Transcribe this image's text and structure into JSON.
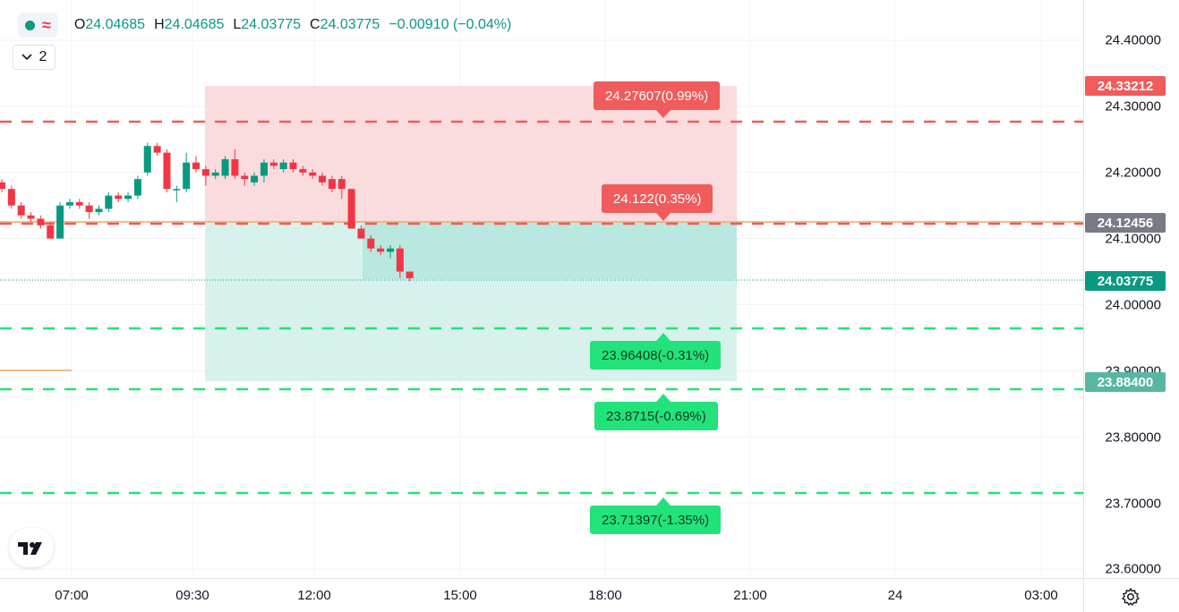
{
  "legend": {
    "o_key": "O",
    "o_val": "24.04685",
    "h_key": "H",
    "h_val": "24.04685",
    "l_key": "L",
    "l_val": "24.03775",
    "c_key": "C",
    "c_val": "24.03775",
    "change": "−0.00910 (−0.04%)",
    "indicator_count": "2"
  },
  "price_axis": {
    "ticks": [
      "24.40000",
      "24.30000",
      "24.20000",
      "24.10000",
      "24.00000",
      "23.90000",
      "23.80000",
      "23.70000",
      "23.60000"
    ],
    "badges": {
      "stop": "24.33212",
      "entry": "24.12456",
      "last": "24.03775",
      "target": "23.88400"
    }
  },
  "time_axis": {
    "ticks": [
      "07:00",
      "09:30",
      "12:00",
      "15:00",
      "18:00",
      "21:00",
      "24",
      "03:00"
    ]
  },
  "targets": {
    "red_top": "24.27607(0.99%)",
    "red_mid": "24.122(0.35%)",
    "green_1": "23.96408(-0.31%)",
    "green_2": "23.8715(-0.69%)",
    "green_3": "23.71397(-1.35%)"
  },
  "colors": {
    "up": "#089981",
    "down": "#f23645",
    "red_line": "#f05b5b",
    "green_line": "#22e37a",
    "entry_line": "#f7a35c",
    "stop_zone": "#fbdadc",
    "profit_zone": "#d5f1ec"
  },
  "chart_data": {
    "type": "candlestick",
    "ylim": [
      23.57,
      24.46
    ],
    "candles": [
      {
        "o": 24.185,
        "h": 24.19,
        "l": 24.17,
        "c": 24.175
      },
      {
        "o": 24.175,
        "h": 24.18,
        "l": 24.145,
        "c": 24.15
      },
      {
        "o": 24.15,
        "h": 24.155,
        "l": 24.13,
        "c": 24.135
      },
      {
        "o": 24.135,
        "h": 24.14,
        "l": 24.125,
        "c": 24.13
      },
      {
        "o": 24.13,
        "h": 24.135,
        "l": 24.115,
        "c": 24.12
      },
      {
        "o": 24.12,
        "h": 24.125,
        "l": 24.1,
        "c": 24.1
      },
      {
        "o": 24.1,
        "h": 24.155,
        "l": 24.1,
        "c": 24.15
      },
      {
        "o": 24.15,
        "h": 24.16,
        "l": 24.145,
        "c": 24.155
      },
      {
        "o": 24.155,
        "h": 24.16,
        "l": 24.145,
        "c": 24.15
      },
      {
        "o": 24.15,
        "h": 24.155,
        "l": 24.13,
        "c": 24.14
      },
      {
        "o": 24.14,
        "h": 24.15,
        "l": 24.135,
        "c": 24.145
      },
      {
        "o": 24.145,
        "h": 24.17,
        "l": 24.14,
        "c": 24.165
      },
      {
        "o": 24.165,
        "h": 24.17,
        "l": 24.155,
        "c": 24.16
      },
      {
        "o": 24.16,
        "h": 24.17,
        "l": 24.155,
        "c": 24.165
      },
      {
        "o": 24.165,
        "h": 24.195,
        "l": 24.16,
        "c": 24.19
      },
      {
        "o": 24.2,
        "h": 24.245,
        "l": 24.195,
        "c": 24.24
      },
      {
        "o": 24.24,
        "h": 24.245,
        "l": 24.225,
        "c": 24.23
      },
      {
        "o": 24.23,
        "h": 24.235,
        "l": 24.17,
        "c": 24.175
      },
      {
        "o": 24.175,
        "h": 24.18,
        "l": 24.155,
        "c": 24.175
      },
      {
        "o": 24.175,
        "h": 24.23,
        "l": 24.17,
        "c": 24.215
      },
      {
        "o": 24.215,
        "h": 24.225,
        "l": 24.2,
        "c": 24.205
      },
      {
        "o": 24.205,
        "h": 24.21,
        "l": 24.18,
        "c": 24.195
      },
      {
        "o": 24.195,
        "h": 24.205,
        "l": 24.19,
        "c": 24.2
      },
      {
        "o": 24.195,
        "h": 24.225,
        "l": 24.19,
        "c": 24.22
      },
      {
        "o": 24.22,
        "h": 24.235,
        "l": 24.19,
        "c": 24.195
      },
      {
        "o": 24.195,
        "h": 24.2,
        "l": 24.18,
        "c": 24.19
      },
      {
        "o": 24.185,
        "h": 24.2,
        "l": 24.18,
        "c": 24.195
      },
      {
        "o": 24.195,
        "h": 24.22,
        "l": 24.185,
        "c": 24.215
      },
      {
        "o": 24.215,
        "h": 24.22,
        "l": 24.205,
        "c": 24.21
      },
      {
        "o": 24.205,
        "h": 24.22,
        "l": 24.2,
        "c": 24.215
      },
      {
        "o": 24.215,
        "h": 24.22,
        "l": 24.2,
        "c": 24.205
      },
      {
        "o": 24.205,
        "h": 24.21,
        "l": 24.195,
        "c": 24.2
      },
      {
        "o": 24.2,
        "h": 24.205,
        "l": 24.19,
        "c": 24.195
      },
      {
        "o": 24.195,
        "h": 24.2,
        "l": 24.18,
        "c": 24.185
      },
      {
        "o": 24.19,
        "h": 24.195,
        "l": 24.17,
        "c": 24.175
      },
      {
        "o": 24.19,
        "h": 24.195,
        "l": 24.16,
        "c": 24.175
      },
      {
        "o": 24.175,
        "h": 24.175,
        "l": 24.12,
        "c": 24.115
      },
      {
        "o": 24.115,
        "h": 24.12,
        "l": 24.1,
        "c": 24.1
      },
      {
        "o": 24.1,
        "h": 24.105,
        "l": 24.08,
        "c": 24.085
      },
      {
        "o": 24.085,
        "h": 24.09,
        "l": 24.075,
        "c": 24.08
      },
      {
        "o": 24.08,
        "h": 24.09,
        "l": 24.07,
        "c": 24.085
      },
      {
        "o": 24.085,
        "h": 24.09,
        "l": 24.04,
        "c": 24.05
      },
      {
        "o": 24.05,
        "h": 24.05,
        "l": 24.035,
        "c": 24.04
      }
    ]
  }
}
